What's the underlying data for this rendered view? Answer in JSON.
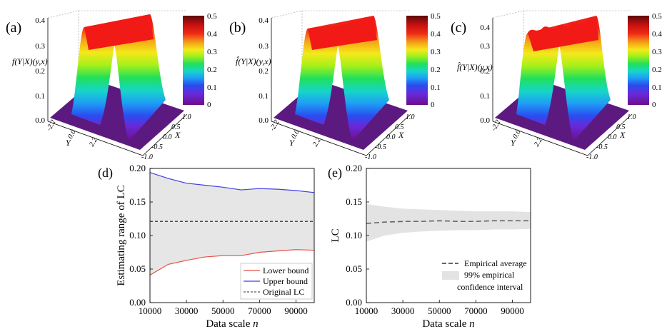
{
  "panels_3d": [
    {
      "label": "(a)",
      "zlabel": "f(Y|X)(y,x)",
      "xlabel": "X",
      "ylabel": "Y",
      "z_ticks": [
        "0.0",
        "0.1",
        "0.2",
        "0.3",
        "0.4"
      ],
      "x_ticks": [
        "1.0",
        "0.5",
        "0.0",
        "-0.5",
        "-1.0"
      ],
      "y_ticks": [
        "-2.2",
        "0.0",
        "2.2"
      ],
      "colorbar_ticks": [
        "0.5",
        "0.4",
        "0.3",
        "0.2",
        "0.1",
        "0"
      ],
      "surface": "Gaussian density surface over Y for each X, peak ≈ 0.40"
    },
    {
      "label": "(b)",
      "zlabel": "f̂(Y|X)(y,x)",
      "xlabel": "X",
      "ylabel": "Y",
      "z_ticks": [
        "0.0",
        "0.1",
        "0.2",
        "0.3",
        "0.4"
      ],
      "x_ticks": [
        "1.0",
        "0.5",
        "0.0",
        "-0.5",
        "-1.0"
      ],
      "y_ticks": [
        "-2.2",
        "0.0",
        "2.2"
      ],
      "colorbar_ticks": [
        "0.5",
        "0.4",
        "0.3",
        "0.2",
        "0.1",
        "0"
      ],
      "surface": "estimated density surface, peak ≈ 0.40"
    },
    {
      "label": "(c)",
      "zlabel": "f̂(Y|X)(y,x)",
      "xlabel": "X",
      "ylabel": "Y",
      "z_ticks": [
        "0.0",
        "0.1",
        "0.2",
        "0.3",
        "0.4"
      ],
      "x_ticks": [
        "1.0",
        "0.5",
        "0.0",
        "-0.5",
        "-1.0"
      ],
      "y_ticks": [
        "-2.2",
        "0.0",
        "2.2"
      ],
      "colorbar_ticks": [
        "0.5",
        "0.4",
        "0.3",
        "0.2",
        "0.1",
        "0"
      ],
      "surface": "noisy estimated density surface, peak ≈ 0.42"
    }
  ],
  "chart_data": [
    {
      "type": "line",
      "panel": "(d)",
      "xlabel": "Data scale n",
      "ylabel": "Estimating range of LC",
      "xlim": [
        10000,
        100000
      ],
      "ylim": [
        0.0,
        0.2
      ],
      "x_ticks": [
        "10000",
        "30000",
        "50000",
        "70000",
        "90000"
      ],
      "y_ticks": [
        "0.00",
        "0.05",
        "0.10",
        "0.15",
        "0.20"
      ],
      "x": [
        10000,
        20000,
        30000,
        40000,
        50000,
        60000,
        70000,
        80000,
        90000,
        100000
      ],
      "series": [
        {
          "name": "Lower bound",
          "color": "#e8504a",
          "values": [
            0.041,
            0.057,
            0.063,
            0.068,
            0.07,
            0.07,
            0.075,
            0.077,
            0.079,
            0.078
          ]
        },
        {
          "name": "Upper bound",
          "color": "#4040e8",
          "values": [
            0.194,
            0.185,
            0.178,
            0.175,
            0.172,
            0.168,
            0.17,
            0.169,
            0.167,
            0.164
          ]
        },
        {
          "name": "Original LC",
          "color": "#333333",
          "values": [
            0.121,
            0.121,
            0.121,
            0.121,
            0.121,
            0.121,
            0.121,
            0.121,
            0.121,
            0.121
          ]
        }
      ],
      "band_between": [
        "Lower bound",
        "Upper bound"
      ],
      "band_color": "#e6e6e6",
      "legend": "bottom-right"
    },
    {
      "type": "line",
      "panel": "(e)",
      "xlabel": "Data scale n",
      "ylabel": "LC",
      "xlim": [
        10000,
        100000
      ],
      "ylim": [
        0.0,
        0.2
      ],
      "x_ticks": [
        "10000",
        "30000",
        "50000",
        "70000",
        "90000"
      ],
      "y_ticks": [
        "0.00",
        "0.05",
        "0.10",
        "0.15",
        "0.20"
      ],
      "x": [
        10000,
        20000,
        30000,
        40000,
        50000,
        60000,
        70000,
        80000,
        90000,
        100000
      ],
      "series": [
        {
          "name": "Empirical average",
          "color": "#666666",
          "values": [
            0.118,
            0.12,
            0.121,
            0.121,
            0.122,
            0.121,
            0.121,
            0.122,
            0.122,
            0.122
          ]
        }
      ],
      "band": {
        "name": "99% empirical confidence interval",
        "color": "#e3e3e3",
        "lower": [
          0.091,
          0.1,
          0.104,
          0.106,
          0.107,
          0.108,
          0.108,
          0.109,
          0.109,
          0.11
        ],
        "upper": [
          0.147,
          0.143,
          0.14,
          0.139,
          0.138,
          0.137,
          0.136,
          0.136,
          0.136,
          0.135
        ]
      },
      "legend": "bottom-right"
    }
  ],
  "panel_labels": {
    "d": "(d)",
    "e": "(e)"
  },
  "legend_d": {
    "lower": "Lower bound",
    "upper": "Upper bound",
    "orig": "Original LC"
  },
  "legend_e": {
    "avg": "Empirical average",
    "ci_line1": "99% empirical",
    "ci_line2": "confidence interval"
  },
  "axis_titles": {
    "xlabel_main": "Data scale ",
    "xlabel_italic": "n",
    "ylabel_d": "Estimating range of LC",
    "ylabel_e": "LC"
  }
}
